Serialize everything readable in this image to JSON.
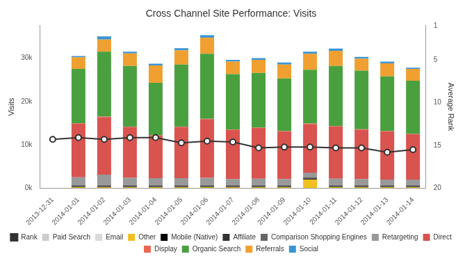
{
  "chart_data": {
    "type": "bar",
    "title": "Cross Channel Site Performance: Visits",
    "y_label": "Visits",
    "y2_label": "Average Rank",
    "stacked": true,
    "grid": false,
    "legend": "bottom",
    "categories": [
      "2013-12-31",
      "2014-01-01",
      "2014-01-02",
      "2014-01-03",
      "2014-01-04",
      "2014-01-05",
      "2014-01-06",
      "2014-01-07",
      "2014-01-08",
      "2014-01-09",
      "2014-01-10",
      "2014-01-11",
      "2014-01-12",
      "2014-01-13",
      "2014-01-14"
    ],
    "ylim": [
      0,
      37500
    ],
    "yticks": [
      {
        "value": 0,
        "label": "0k"
      },
      {
        "value": 10000,
        "label": "10k"
      },
      {
        "value": 20000,
        "label": "20k"
      },
      {
        "value": 30000,
        "label": "30k"
      }
    ],
    "y2lim": [
      20,
      1
    ],
    "y2ticks": [
      1,
      5,
      10,
      15,
      20
    ],
    "series": [
      {
        "name": "Paid Search",
        "type": "bar",
        "color": "#cccccc",
        "values": [
          null,
          null,
          null,
          null,
          null,
          null,
          null,
          null,
          null,
          null,
          null,
          null,
          null,
          null,
          null
        ]
      },
      {
        "name": "Email",
        "type": "bar",
        "color": "#d9d9d9",
        "values": [
          null,
          null,
          null,
          null,
          null,
          null,
          null,
          null,
          null,
          null,
          null,
          null,
          null,
          null,
          null
        ]
      },
      {
        "name": "Other",
        "type": "bar",
        "color": "#f0c020",
        "values": [
          null,
          200,
          200,
          200,
          200,
          200,
          200,
          200,
          200,
          200,
          2000,
          200,
          200,
          200,
          200
        ]
      },
      {
        "name": "Mobile (Native)",
        "type": "bar",
        "color": "#000000",
        "values": [
          null,
          100,
          100,
          100,
          100,
          100,
          100,
          100,
          100,
          100,
          100,
          100,
          100,
          100,
          100
        ]
      },
      {
        "name": "Affiliate",
        "type": "bar",
        "color": "#333333",
        "values": [
          null,
          150,
          150,
          150,
          150,
          150,
          150,
          150,
          150,
          150,
          150,
          150,
          150,
          150,
          150
        ]
      },
      {
        "name": "Comparison Shopping Engines",
        "type": "bar",
        "color": "#666666",
        "values": [
          null,
          300,
          300,
          300,
          300,
          300,
          300,
          300,
          300,
          300,
          300,
          300,
          300,
          300,
          300
        ]
      },
      {
        "name": "Retargeting",
        "type": "bar",
        "color": "#999999",
        "values": [
          null,
          1750,
          2350,
          1650,
          1550,
          1550,
          1650,
          1350,
          1450,
          1350,
          1050,
          1450,
          1350,
          1250,
          1250
        ]
      },
      {
        "name": "Direct",
        "type": "bar",
        "color": "#d9534f",
        "values": [
          null,
          12400,
          13300,
          11700,
          9800,
          11800,
          13500,
          11300,
          11700,
          11000,
          11200,
          12000,
          11400,
          11100,
          10400
        ]
      },
      {
        "name": "Display",
        "type": "bar",
        "color": "#e8674f",
        "values": [
          null,
          100,
          100,
          100,
          100,
          100,
          100,
          100,
          100,
          100,
          100,
          100,
          100,
          100,
          100
        ]
      },
      {
        "name": "Organic Search",
        "type": "bar",
        "color": "#4aa03f",
        "values": [
          null,
          12500,
          15000,
          14000,
          12100,
          14300,
          15000,
          12800,
          12600,
          12100,
          12400,
          13900,
          13500,
          12600,
          12300
        ]
      },
      {
        "name": "Referrals",
        "type": "bar",
        "color": "#f0a030",
        "values": [
          null,
          2700,
          2800,
          2900,
          4000,
          3300,
          3700,
          2900,
          3000,
          3200,
          3700,
          3500,
          2800,
          3000,
          2700
        ]
      },
      {
        "name": "Social",
        "type": "bar",
        "color": "#3a95d6",
        "values": [
          null,
          300,
          700,
          400,
          400,
          500,
          600,
          400,
          400,
          500,
          500,
          500,
          400,
          400,
          300
        ]
      },
      {
        "name": "Rank",
        "type": "line",
        "axis": "y2",
        "color": "#333333",
        "marker": "circle",
        "line_style": "solid",
        "values": [
          14.3,
          14.1,
          14.3,
          14.1,
          14.1,
          14.7,
          14.5,
          14.6,
          15.3,
          15.2,
          15.2,
          15.3,
          15.3,
          15.8,
          15.5
        ]
      }
    ]
  }
}
